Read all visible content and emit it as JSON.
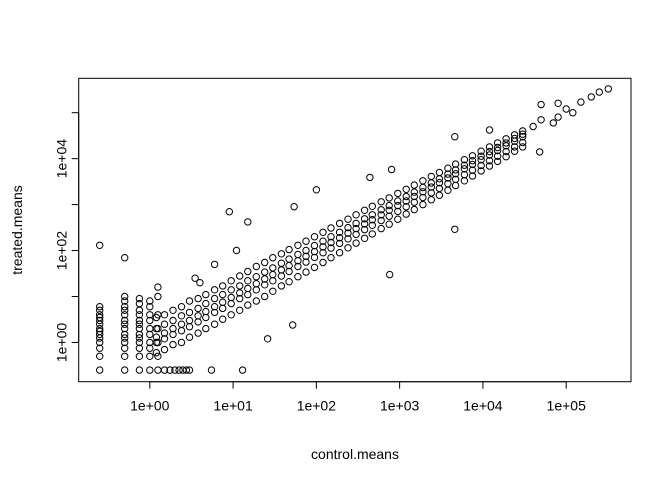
{
  "chart_data": {
    "type": "scatter",
    "title": "",
    "xlabel": "control.means",
    "ylabel": "treated.means",
    "xscale": "log",
    "yscale": "log",
    "xlim": [
      0.14,
      600000
    ],
    "ylim": [
      0.14,
      560000
    ],
    "grid": false,
    "legend": "none",
    "marker": "open-circle",
    "color": "#000000",
    "x_ticks": [
      {
        "value": 1,
        "label": "1e+00"
      },
      {
        "value": 10,
        "label": "1e+01"
      },
      {
        "value": 100,
        "label": "1e+02"
      },
      {
        "value": 1000,
        "label": "1e+03"
      },
      {
        "value": 10000,
        "label": "1e+04"
      },
      {
        "value": 100000,
        "label": "1e+05"
      }
    ],
    "y_ticks": [
      {
        "value": 1,
        "label": "1e+00"
      },
      {
        "value": 10,
        "label": ""
      },
      {
        "value": 100,
        "label": "1e+02"
      },
      {
        "value": 1000,
        "label": ""
      },
      {
        "value": 10000,
        "label": "1e+04"
      },
      {
        "value": 100000,
        "label": ""
      }
    ],
    "points": [
      [
        0.25,
        0.25
      ],
      [
        0.25,
        0.5
      ],
      [
        0.25,
        0.75
      ],
      [
        0.25,
        1
      ],
      [
        0.25,
        1.25
      ],
      [
        0.25,
        1.5
      ],
      [
        0.25,
        1.75
      ],
      [
        0.25,
        2
      ],
      [
        0.25,
        2.5
      ],
      [
        0.25,
        3
      ],
      [
        0.25,
        3.5
      ],
      [
        0.25,
        4
      ],
      [
        0.25,
        5
      ],
      [
        0.25,
        6
      ],
      [
        0.25,
        130
      ],
      [
        0.5,
        0.25
      ],
      [
        0.5,
        0.5
      ],
      [
        0.5,
        0.75
      ],
      [
        0.5,
        1
      ],
      [
        0.5,
        1.25
      ],
      [
        0.5,
        1.5
      ],
      [
        0.5,
        2
      ],
      [
        0.5,
        2.5
      ],
      [
        0.5,
        3
      ],
      [
        0.5,
        4
      ],
      [
        0.5,
        5
      ],
      [
        0.5,
        6
      ],
      [
        0.5,
        8
      ],
      [
        0.5,
        10
      ],
      [
        0.5,
        70
      ],
      [
        0.75,
        0.25
      ],
      [
        0.75,
        0.5
      ],
      [
        0.75,
        0.75
      ],
      [
        0.75,
        1
      ],
      [
        0.75,
        1.25
      ],
      [
        0.75,
        1.5
      ],
      [
        0.75,
        2
      ],
      [
        0.75,
        2.5
      ],
      [
        0.75,
        3
      ],
      [
        0.75,
        4
      ],
      [
        0.75,
        5
      ],
      [
        0.75,
        7
      ],
      [
        0.75,
        9
      ],
      [
        1,
        0.25
      ],
      [
        1,
        0.5
      ],
      [
        1,
        0.75
      ],
      [
        1,
        1
      ],
      [
        1,
        1.5
      ],
      [
        1,
        2
      ],
      [
        1,
        3
      ],
      [
        1,
        4
      ],
      [
        1,
        6
      ],
      [
        1,
        8
      ],
      [
        1.25,
        0.25
      ],
      [
        1.25,
        0.5
      ],
      [
        1.25,
        1
      ],
      [
        1.25,
        2
      ],
      [
        1.25,
        4
      ],
      [
        1.25,
        10
      ],
      [
        1.25,
        16
      ],
      [
        1.5,
        0.25
      ],
      [
        1.75,
        0.25
      ],
      [
        2,
        0.25
      ],
      [
        2.25,
        0.25
      ],
      [
        2.5,
        0.25
      ],
      [
        2.75,
        0.25
      ],
      [
        3,
        0.25
      ],
      [
        1.2,
        0.6
      ],
      [
        1.2,
        1
      ],
      [
        1.2,
        1.3
      ],
      [
        1.2,
        2
      ],
      [
        1.2,
        3.5
      ],
      [
        1.5,
        0.7
      ],
      [
        1.5,
        1.2
      ],
      [
        1.5,
        1.6
      ],
      [
        1.5,
        2.5
      ],
      [
        1.5,
        4
      ],
      [
        1.9,
        0.9
      ],
      [
        1.9,
        1.5
      ],
      [
        1.9,
        2
      ],
      [
        1.9,
        3
      ],
      [
        1.9,
        5
      ],
      [
        2.4,
        1
      ],
      [
        2.4,
        1.8
      ],
      [
        2.4,
        2.5
      ],
      [
        2.4,
        3.8
      ],
      [
        2.4,
        6
      ],
      [
        3,
        1.3
      ],
      [
        3,
        2.2
      ],
      [
        3,
        3
      ],
      [
        3,
        4.5
      ],
      [
        3,
        8
      ],
      [
        3.8,
        1.6
      ],
      [
        3.8,
        2.8
      ],
      [
        3.8,
        3.8
      ],
      [
        3.8,
        5.5
      ],
      [
        3.8,
        9
      ],
      [
        4.7,
        2
      ],
      [
        4.7,
        3.5
      ],
      [
        4.7,
        4.7
      ],
      [
        4.7,
        7
      ],
      [
        4.7,
        11
      ],
      [
        6,
        2.5
      ],
      [
        6,
        4.5
      ],
      [
        6,
        6
      ],
      [
        6,
        9
      ],
      [
        6,
        14
      ],
      [
        7.5,
        3.2
      ],
      [
        7.5,
        5.5
      ],
      [
        7.5,
        7.5
      ],
      [
        7.5,
        11
      ],
      [
        7.5,
        17
      ],
      [
        9.5,
        4
      ],
      [
        9.5,
        7
      ],
      [
        9.5,
        9.5
      ],
      [
        9.5,
        14
      ],
      [
        9.5,
        22
      ],
      [
        12,
        5
      ],
      [
        12,
        9
      ],
      [
        12,
        12
      ],
      [
        12,
        17
      ],
      [
        12,
        28
      ],
      [
        15,
        6.5
      ],
      [
        15,
        11
      ],
      [
        15,
        15
      ],
      [
        15,
        22
      ],
      [
        15,
        35
      ],
      [
        19,
        8
      ],
      [
        19,
        14
      ],
      [
        19,
        19
      ],
      [
        19,
        27
      ],
      [
        19,
        45
      ],
      [
        24,
        10
      ],
      [
        24,
        18
      ],
      [
        24,
        24
      ],
      [
        24,
        34
      ],
      [
        24,
        55
      ],
      [
        30,
        13
      ],
      [
        30,
        22
      ],
      [
        30,
        30
      ],
      [
        30,
        42
      ],
      [
        30,
        70
      ],
      [
        38,
        17
      ],
      [
        38,
        28
      ],
      [
        38,
        38
      ],
      [
        38,
        53
      ],
      [
        38,
        85
      ],
      [
        47,
        21
      ],
      [
        47,
        35
      ],
      [
        47,
        47
      ],
      [
        47,
        65
      ],
      [
        47,
        105
      ],
      [
        60,
        27
      ],
      [
        60,
        45
      ],
      [
        60,
        60
      ],
      [
        60,
        82
      ],
      [
        60,
        130
      ],
      [
        75,
        34
      ],
      [
        75,
        56
      ],
      [
        75,
        75
      ],
      [
        75,
        100
      ],
      [
        75,
        160
      ],
      [
        95,
        43
      ],
      [
        95,
        71
      ],
      [
        95,
        95
      ],
      [
        95,
        128
      ],
      [
        95,
        200
      ],
      [
        120,
        55
      ],
      [
        120,
        90
      ],
      [
        120,
        120
      ],
      [
        120,
        160
      ],
      [
        120,
        250
      ],
      [
        150,
        70
      ],
      [
        150,
        113
      ],
      [
        150,
        150
      ],
      [
        150,
        200
      ],
      [
        150,
        310
      ],
      [
        190,
        90
      ],
      [
        190,
        143
      ],
      [
        190,
        190
      ],
      [
        190,
        250
      ],
      [
        190,
        390
      ],
      [
        240,
        115
      ],
      [
        240,
        180
      ],
      [
        240,
        240
      ],
      [
        240,
        315
      ],
      [
        240,
        480
      ],
      [
        300,
        145
      ],
      [
        300,
        225
      ],
      [
        300,
        300
      ],
      [
        300,
        390
      ],
      [
        300,
        600
      ],
      [
        380,
        185
      ],
      [
        380,
        285
      ],
      [
        380,
        380
      ],
      [
        380,
        490
      ],
      [
        380,
        750
      ],
      [
        470,
        230
      ],
      [
        470,
        355
      ],
      [
        470,
        470
      ],
      [
        470,
        600
      ],
      [
        470,
        920
      ],
      [
        600,
        300
      ],
      [
        600,
        450
      ],
      [
        600,
        600
      ],
      [
        600,
        770
      ],
      [
        600,
        1150
      ],
      [
        750,
        375
      ],
      [
        750,
        560
      ],
      [
        750,
        750
      ],
      [
        750,
        950
      ],
      [
        750,
        1400
      ],
      [
        950,
        480
      ],
      [
        950,
        710
      ],
      [
        950,
        950
      ],
      [
        950,
        1200
      ],
      [
        950,
        1750
      ],
      [
        1200,
        620
      ],
      [
        1200,
        900
      ],
      [
        1200,
        1200
      ],
      [
        1200,
        1500
      ],
      [
        1200,
        2150
      ],
      [
        1500,
        780
      ],
      [
        1500,
        1130
      ],
      [
        1500,
        1500
      ],
      [
        1500,
        1870
      ],
      [
        1500,
        2650
      ],
      [
        1900,
        1000
      ],
      [
        1900,
        1430
      ],
      [
        1900,
        1900
      ],
      [
        1900,
        2350
      ],
      [
        1900,
        3300
      ],
      [
        2400,
        1280
      ],
      [
        2400,
        1800
      ],
      [
        2400,
        2400
      ],
      [
        2400,
        2950
      ],
      [
        2400,
        4100
      ],
      [
        3000,
        1600
      ],
      [
        3000,
        2250
      ],
      [
        3000,
        3000
      ],
      [
        3000,
        3650
      ],
      [
        3000,
        5000
      ],
      [
        3800,
        2050
      ],
      [
        3800,
        2850
      ],
      [
        3800,
        3800
      ],
      [
        3800,
        4600
      ],
      [
        3800,
        6200
      ],
      [
        4700,
        2600
      ],
      [
        4700,
        3550
      ],
      [
        4700,
        4700
      ],
      [
        4700,
        5700
      ],
      [
        4700,
        7600
      ],
      [
        6000,
        3300
      ],
      [
        6000,
        4500
      ],
      [
        6000,
        6000
      ],
      [
        6000,
        7200
      ],
      [
        6000,
        9500
      ],
      [
        7500,
        4200
      ],
      [
        7500,
        5600
      ],
      [
        7500,
        7500
      ],
      [
        7500,
        9000
      ],
      [
        7500,
        11500
      ],
      [
        9500,
        5400
      ],
      [
        9500,
        7100
      ],
      [
        9500,
        9500
      ],
      [
        9500,
        11300
      ],
      [
        9500,
        14500
      ],
      [
        12000,
        6900
      ],
      [
        12000,
        9000
      ],
      [
        12000,
        12000
      ],
      [
        12000,
        14200
      ],
      [
        12000,
        18000
      ],
      [
        15000,
        8700
      ],
      [
        15000,
        11300
      ],
      [
        15000,
        15000
      ],
      [
        15000,
        17500
      ],
      [
        15000,
        22000
      ],
      [
        19000,
        11000
      ],
      [
        19000,
        14300
      ],
      [
        19000,
        19000
      ],
      [
        19000,
        22000
      ],
      [
        19000,
        27000
      ],
      [
        24000,
        14500
      ],
      [
        24000,
        18000
      ],
      [
        24000,
        24000
      ],
      [
        24000,
        27500
      ],
      [
        24000,
        33000
      ],
      [
        30000,
        18000
      ],
      [
        30000,
        22500
      ],
      [
        30000,
        30000
      ],
      [
        30000,
        34000
      ],
      [
        30000,
        40000
      ],
      [
        5.5,
        0.25
      ],
      [
        13,
        0.25
      ],
      [
        3.5,
        25
      ],
      [
        4,
        20
      ],
      [
        6,
        50
      ],
      [
        11,
        100
      ],
      [
        9,
        700
      ],
      [
        15,
        420
      ],
      [
        54,
        900
      ],
      [
        100,
        2100
      ],
      [
        440,
        3900
      ],
      [
        800,
        5800
      ],
      [
        4600,
        30000
      ],
      [
        12000,
        42000
      ],
      [
        50000,
        150000
      ],
      [
        80000,
        160000
      ],
      [
        52,
        2.4
      ],
      [
        26,
        1.2
      ],
      [
        760,
        30
      ],
      [
        4600,
        290
      ],
      [
        48000,
        14000
      ],
      [
        40000,
        50000
      ],
      [
        50000,
        70000
      ],
      [
        70000,
        60000
      ],
      [
        100000,
        120000
      ],
      [
        150000,
        170000
      ],
      [
        200000,
        220000
      ],
      [
        250000,
        280000
      ],
      [
        320000,
        330000
      ],
      [
        80000,
        80000
      ],
      [
        120000,
        100000
      ]
    ]
  }
}
